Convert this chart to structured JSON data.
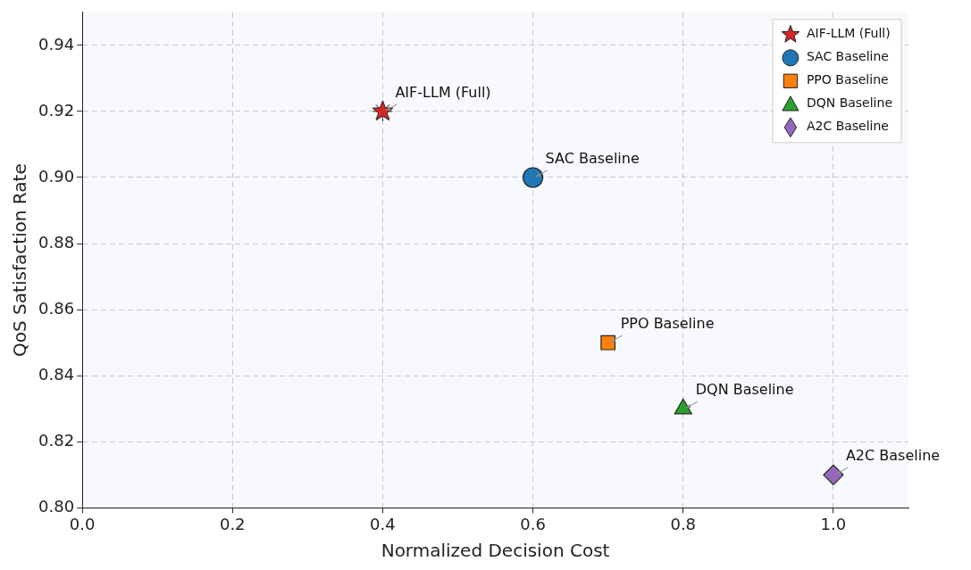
{
  "chart_data": {
    "type": "scatter",
    "xlabel": "Normalized Decision Cost",
    "ylabel": "QoS Satisfaction Rate",
    "xlim": [
      0,
      1.1
    ],
    "ylim": [
      0.8,
      0.95
    ],
    "xticks": [
      {
        "value": 0,
        "label": "0.0"
      },
      {
        "value": 0.2,
        "label": "0.2"
      },
      {
        "value": 0.4,
        "label": "0.4"
      },
      {
        "value": 0.6,
        "label": "0.6"
      },
      {
        "value": 0.8,
        "label": "0.8"
      },
      {
        "value": 1,
        "label": "1.0"
      }
    ],
    "yticks": [
      {
        "value": 0.8,
        "label": "0.80"
      },
      {
        "value": 0.82,
        "label": "0.82"
      },
      {
        "value": 0.84,
        "label": "0.84"
      },
      {
        "value": 0.86,
        "label": "0.86"
      },
      {
        "value": 0.88,
        "label": "0.88"
      },
      {
        "value": 0.9,
        "label": "0.90"
      },
      {
        "value": 0.92,
        "label": "0.92"
      },
      {
        "value": 0.94,
        "label": "0.94"
      }
    ],
    "grid": true,
    "legend": "top right",
    "series": [
      {
        "name": "AIF-LLM (Full)",
        "color": "#d62728",
        "marker": "star",
        "x": [
          0.4
        ],
        "values": [
          0.92
        ]
      },
      {
        "name": "SAC Baseline",
        "color": "#1f77b4",
        "marker": "circle",
        "x": [
          0.6
        ],
        "values": [
          0.9
        ]
      },
      {
        "name": "PPO Baseline",
        "color": "#ff7f0e",
        "marker": "square",
        "x": [
          0.7
        ],
        "values": [
          0.85
        ]
      },
      {
        "name": "DQN Baseline",
        "color": "#2ca02c",
        "marker": "triangle",
        "x": [
          0.8
        ],
        "values": [
          0.83
        ]
      },
      {
        "name": "A2C Baseline",
        "color": "#9467bd",
        "marker": "diamond",
        "x": [
          1.0
        ],
        "values": [
          0.81
        ]
      }
    ],
    "annotations": [
      {
        "text": "AIF-LLM (Full)",
        "x": 0.4,
        "y": 0.92
      },
      {
        "text": "SAC Baseline",
        "x": 0.6,
        "y": 0.9
      },
      {
        "text": "PPO Baseline",
        "x": 0.7,
        "y": 0.85
      },
      {
        "text": "DQN Baseline",
        "x": 0.8,
        "y": 0.83
      },
      {
        "text": "A2C Baseline",
        "x": 1.0,
        "y": 0.81
      }
    ]
  }
}
